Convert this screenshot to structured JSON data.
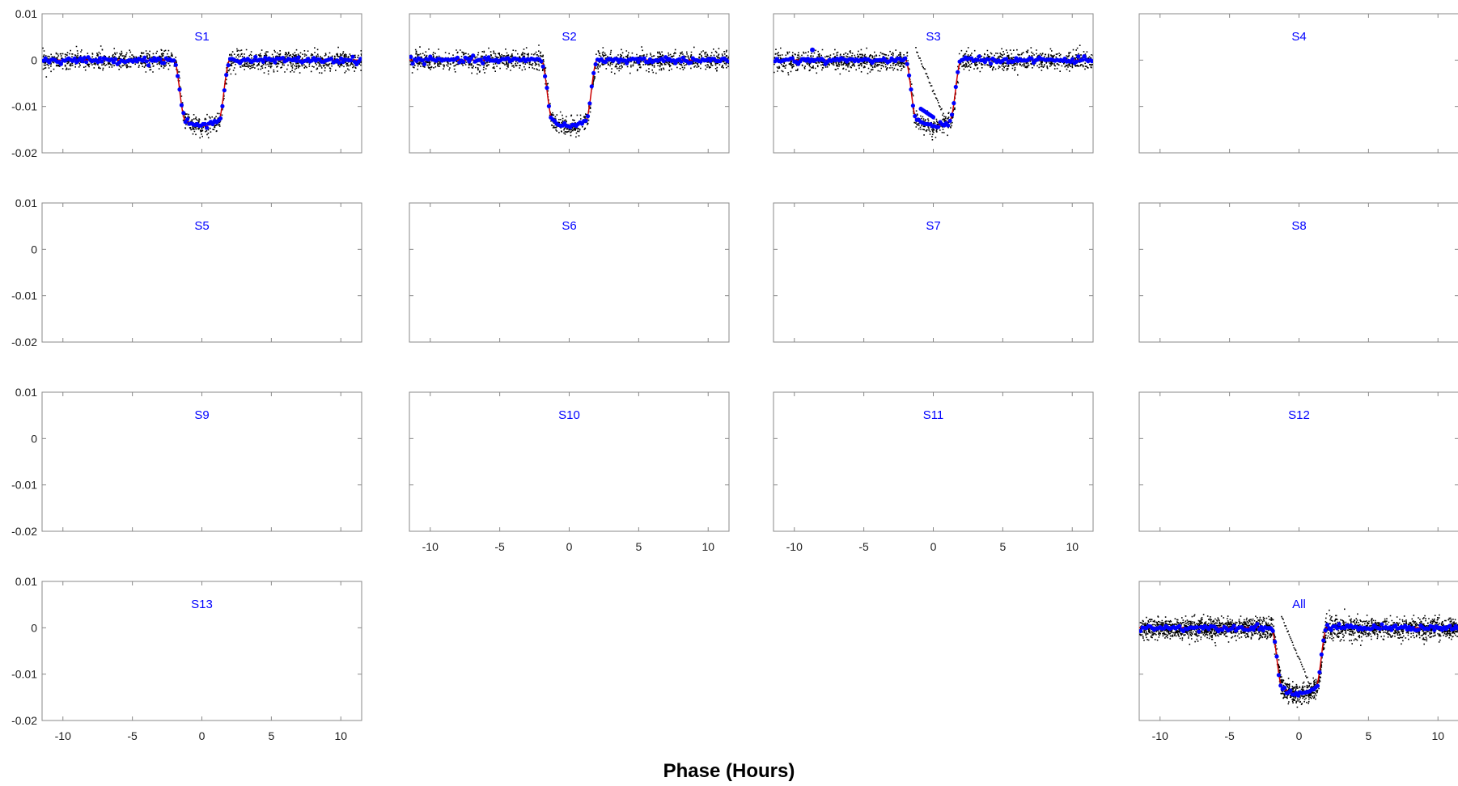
{
  "figure": {
    "xlabel": "Phase (Hours)"
  },
  "colors": {
    "raw_points": "#000000",
    "binned_points": "#0000ff",
    "model_line": "#cc0000",
    "title_text": "#0000ff",
    "frame": "#888888"
  },
  "chart_data": {
    "type": "scatter",
    "layout": {
      "rows": 4,
      "cols": 4
    },
    "shared_xlim": [
      -11.5,
      11.5
    ],
    "shared_ylim": [
      -0.02,
      0.01
    ],
    "xticks": [
      -10,
      -5,
      0,
      5,
      10
    ],
    "xtick_labels": [
      "-10",
      "-5",
      "0",
      "5",
      "10"
    ],
    "yticks": [
      0.01,
      0,
      -0.01,
      -0.02
    ],
    "ytick_labels": [
      "0.01",
      "0",
      "-0.01",
      "-0.02"
    ],
    "transit_model": {
      "depth": -0.0138,
      "ingress_start": -2.0,
      "ingress_end": -1.2,
      "egress_start": 1.2,
      "egress_end": 2.0,
      "noise_sigma": 0.001
    },
    "panels": [
      {
        "title": "S1",
        "row": 0,
        "col": 0,
        "has_data": true,
        "show_yaxis": true,
        "show_xaxis": false
      },
      {
        "title": "S2",
        "row": 0,
        "col": 1,
        "has_data": true,
        "show_yaxis": false,
        "show_xaxis": false
      },
      {
        "title": "S3",
        "row": 0,
        "col": 2,
        "has_data": true,
        "show_yaxis": false,
        "show_xaxis": false,
        "has_trail": true
      },
      {
        "title": "S4",
        "row": 0,
        "col": 3,
        "has_data": false,
        "show_yaxis": false,
        "show_xaxis": false
      },
      {
        "title": "S5",
        "row": 1,
        "col": 0,
        "has_data": false,
        "show_yaxis": true,
        "show_xaxis": false
      },
      {
        "title": "S6",
        "row": 1,
        "col": 1,
        "has_data": false,
        "show_yaxis": false,
        "show_xaxis": false
      },
      {
        "title": "S7",
        "row": 1,
        "col": 2,
        "has_data": false,
        "show_yaxis": false,
        "show_xaxis": false
      },
      {
        "title": "S8",
        "row": 1,
        "col": 3,
        "has_data": false,
        "show_yaxis": false,
        "show_xaxis": false
      },
      {
        "title": "S9",
        "row": 2,
        "col": 0,
        "has_data": false,
        "show_yaxis": true,
        "show_xaxis": false
      },
      {
        "title": "S10",
        "row": 2,
        "col": 1,
        "has_data": false,
        "show_yaxis": false,
        "show_xaxis": true
      },
      {
        "title": "S11",
        "row": 2,
        "col": 2,
        "has_data": false,
        "show_yaxis": false,
        "show_xaxis": true
      },
      {
        "title": "S12",
        "row": 2,
        "col": 3,
        "has_data": false,
        "show_yaxis": false,
        "show_xaxis": false
      },
      {
        "title": "S13",
        "row": 3,
        "col": 0,
        "has_data": false,
        "show_yaxis": true,
        "show_xaxis": true
      },
      {
        "title": "All",
        "row": 3,
        "col": 3,
        "has_data": true,
        "show_yaxis": false,
        "show_xaxis": true,
        "has_trail": true,
        "dense": true
      }
    ]
  }
}
